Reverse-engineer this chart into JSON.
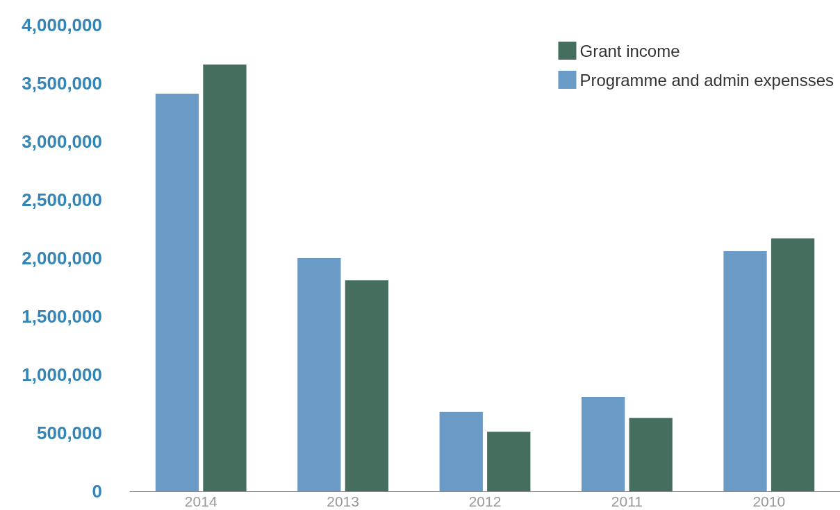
{
  "chart_data": {
    "type": "bar",
    "categories": [
      "2014",
      "2013",
      "2012",
      "2011",
      "2010"
    ],
    "series": [
      {
        "name": "Programme and admin expensses",
        "color": "#6a9ac6",
        "values": [
          3410000,
          2000000,
          680000,
          810000,
          2060000
        ]
      },
      {
        "name": "Grant income",
        "color": "#466e5f",
        "values": [
          3660000,
          1810000,
          510000,
          630000,
          2170000
        ]
      }
    ],
    "ylim": [
      0,
      4000000
    ],
    "yticks": [
      {
        "value": 0,
        "label": "0"
      },
      {
        "value": 500000,
        "label": "500,000"
      },
      {
        "value": 1000000,
        "label": "1,000,000"
      },
      {
        "value": 1500000,
        "label": "1,500,000"
      },
      {
        "value": 2000000,
        "label": "2,000,000"
      },
      {
        "value": 2500000,
        "label": "2,500,000"
      },
      {
        "value": 3000000,
        "label": "3,000,000"
      },
      {
        "value": 3500000,
        "label": "3,500,000"
      },
      {
        "value": 4000000,
        "label": "4,000,000"
      }
    ],
    "grid": false,
    "legend": "top right"
  }
}
